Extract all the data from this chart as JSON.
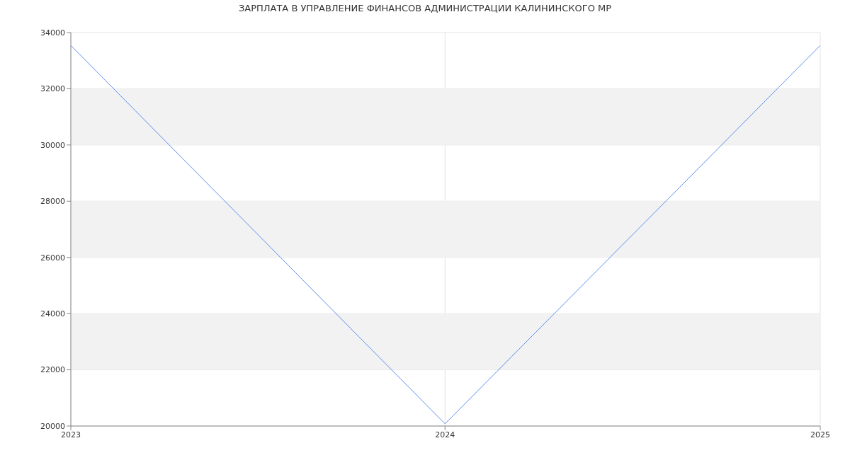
{
  "chart_data": {
    "type": "line",
    "title": "ЗАРПЛАТА В УПРАВЛЕНИЕ ФИНАНСОВ АДМИНИСТРАЦИИ КАЛИНИНСКОГО МР",
    "x": [
      "2023",
      "2024",
      "2025"
    ],
    "series": [
      {
        "color": "#5b8def",
        "values": [
          33540,
          20080,
          33540
        ]
      }
    ],
    "xlim": [
      "2023",
      "2025"
    ],
    "xticks": [
      "2023",
      "2024",
      "2025"
    ],
    "ylim": [
      20000,
      34000
    ],
    "yticks": [
      20000,
      22000,
      24000,
      26000,
      28000,
      30000,
      32000,
      34000
    ],
    "bands": [
      {
        "axis": "y",
        "from": 22000,
        "to": 24000,
        "color": "#f2f2f2"
      },
      {
        "axis": "y",
        "from": 26000,
        "to": 28000,
        "color": "#f2f2f2"
      },
      {
        "axis": "y",
        "from": 30000,
        "to": 32000,
        "color": "#f2f2f2"
      }
    ],
    "grid": true,
    "marker": "none",
    "line_style": "solid"
  }
}
